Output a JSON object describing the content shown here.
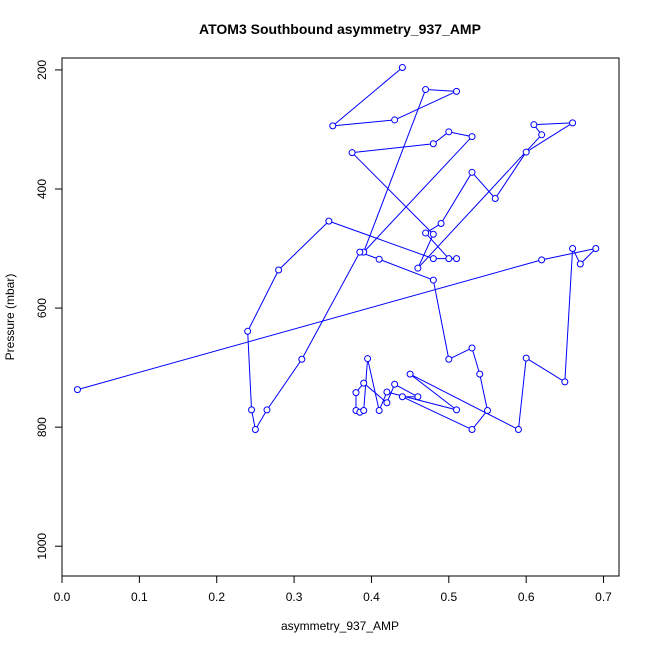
{
  "chart_data": {
    "type": "line",
    "title": "ATOM3 Southbound asymmetry_937_AMP",
    "xlabel": "asymmetry_937_AMP",
    "ylabel": "Pressure (mbar)",
    "xlim": [
      0.0,
      0.72
    ],
    "ylim": [
      1050,
      180
    ],
    "y_reversed": true,
    "x_ticks": [
      0.0,
      0.1,
      0.2,
      0.3,
      0.4,
      0.5,
      0.6,
      0.7
    ],
    "x_tick_labels": [
      "0.0",
      "0.1",
      "0.2",
      "0.3",
      "0.4",
      "0.5",
      "0.6",
      "0.7"
    ],
    "y_ticks": [
      200,
      400,
      600,
      800,
      1000
    ],
    "y_tick_labels": [
      "200",
      "400",
      "600",
      "800",
      "1000"
    ],
    "grid": false,
    "legend": "none",
    "series": [
      {
        "color": "#0000ff",
        "marker": "open-circle",
        "points": [
          [
            0.44,
            196
          ],
          [
            0.35,
            294
          ],
          [
            0.43,
            284
          ],
          [
            0.51,
            236
          ],
          [
            0.47,
            233
          ],
          [
            0.39,
            506
          ],
          [
            0.53,
            312
          ],
          [
            0.5,
            304
          ],
          [
            0.48,
            324
          ],
          [
            0.375,
            339
          ],
          [
            0.48,
            476
          ],
          [
            0.46,
            533
          ],
          [
            0.62,
            309
          ],
          [
            0.61,
            292
          ],
          [
            0.66,
            289
          ],
          [
            0.6,
            338
          ],
          [
            0.56,
            416
          ],
          [
            0.53,
            372
          ],
          [
            0.49,
            458
          ],
          [
            0.47,
            474
          ],
          [
            0.5,
            517
          ],
          [
            0.51,
            517
          ],
          [
            0.48,
            517
          ],
          [
            0.345,
            454
          ],
          [
            0.28,
            536
          ],
          [
            0.24,
            639
          ],
          [
            0.245,
            771
          ],
          [
            0.25,
            804
          ],
          [
            0.265,
            771
          ],
          [
            0.31,
            686
          ],
          [
            0.385,
            506
          ],
          [
            0.41,
            518
          ],
          [
            0.48,
            553
          ],
          [
            0.5,
            686
          ],
          [
            0.53,
            667
          ],
          [
            0.54,
            711
          ],
          [
            0.55,
            772
          ],
          [
            0.53,
            804
          ],
          [
            0.44,
            749
          ],
          [
            0.46,
            749
          ],
          [
            0.43,
            728
          ],
          [
            0.42,
            759
          ],
          [
            0.39,
            726
          ],
          [
            0.38,
            742
          ],
          [
            0.38,
            772
          ],
          [
            0.385,
            775
          ],
          [
            0.39,
            772
          ],
          [
            0.395,
            685
          ],
          [
            0.41,
            772
          ],
          [
            0.42,
            741
          ],
          [
            0.51,
            771
          ],
          [
            0.45,
            711
          ],
          [
            0.59,
            804
          ],
          [
            0.6,
            684
          ],
          [
            0.65,
            724
          ],
          [
            0.66,
            500
          ],
          [
            0.67,
            526
          ],
          [
            0.69,
            500
          ],
          [
            0.62,
            519
          ],
          [
            0.02,
            737
          ]
        ]
      }
    ]
  }
}
